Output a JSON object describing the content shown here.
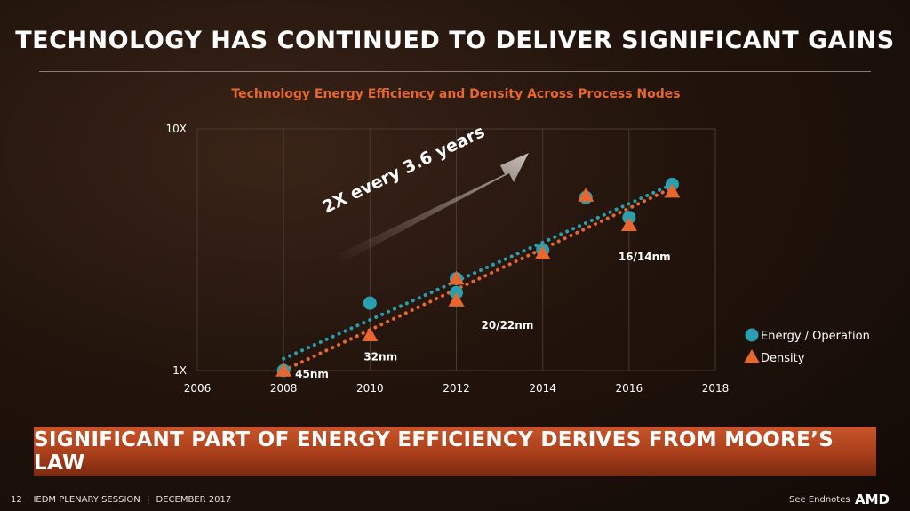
{
  "slide": {
    "title": "TECHNOLOGY HAS CONTINUED TO DELIVER SIGNIFICANT GAINS",
    "banner": "SIGNIFICANT PART OF ENERGY EFFICIENCY DERIVES FROM MOORE’S LAW",
    "footer": {
      "page_number": "12",
      "session": "IEDM PLENARY SESSION",
      "separator": "|",
      "date": "DECEMBER 2017",
      "endnotes": "See Endnotes",
      "logo": "AMD"
    }
  },
  "chart_data": {
    "type": "scatter",
    "title": "Technology Energy Efficiency and Density Across Process Nodes",
    "xlabel": "",
    "ylabel": "",
    "xlim": [
      2006,
      2018
    ],
    "x_ticks": [
      "2006",
      "2008",
      "2010",
      "2012",
      "2014",
      "2016",
      "2018"
    ],
    "y_scale": "log",
    "ylim": [
      1,
      10
    ],
    "y_ticks": [
      {
        "value": 1,
        "label": "1X"
      },
      {
        "value": 10,
        "label": "10X"
      }
    ],
    "grid": {
      "vertical": true,
      "horizontal": false
    },
    "legend_position": "right",
    "series": [
      {
        "name": "Energy / Operation",
        "marker": "circle",
        "color": "#2a9fb0",
        "points": [
          [
            2008,
            1.0
          ],
          [
            2010,
            1.9
          ],
          [
            2012,
            2.4
          ],
          [
            2012,
            2.1
          ],
          [
            2014,
            3.15
          ],
          [
            2015,
            5.2
          ],
          [
            2016,
            4.3
          ],
          [
            2017,
            5.9
          ]
        ]
      },
      {
        "name": "Density",
        "marker": "triangle",
        "color": "#e8672e",
        "points": [
          [
            2008,
            1.0
          ],
          [
            2010,
            1.4
          ],
          [
            2012,
            2.4
          ],
          [
            2012,
            1.95
          ],
          [
            2014,
            3.05
          ],
          [
            2015,
            5.3
          ],
          [
            2016,
            4.0
          ],
          [
            2017,
            5.5
          ]
        ]
      }
    ],
    "trendlines": [
      {
        "series": "Energy / Operation",
        "color": "#2a9fb0",
        "from": [
          2008,
          1.12
        ],
        "to": [
          2017,
          5.9
        ]
      },
      {
        "series": "Density",
        "color": "#e8672e",
        "from": [
          2008,
          1.0
        ],
        "to": [
          2017,
          5.7
        ]
      }
    ],
    "annotations": [
      {
        "text": "45nm",
        "x": 2008,
        "y": 1.0
      },
      {
        "text": "32nm",
        "x": 2010,
        "y": 1.4
      },
      {
        "text": "20/22nm",
        "x": 2012,
        "y": 1.95
      },
      {
        "text": "16/14nm",
        "x": 2016,
        "y": 4.0
      }
    ],
    "arrow_label": "2X every 3.6 years"
  }
}
